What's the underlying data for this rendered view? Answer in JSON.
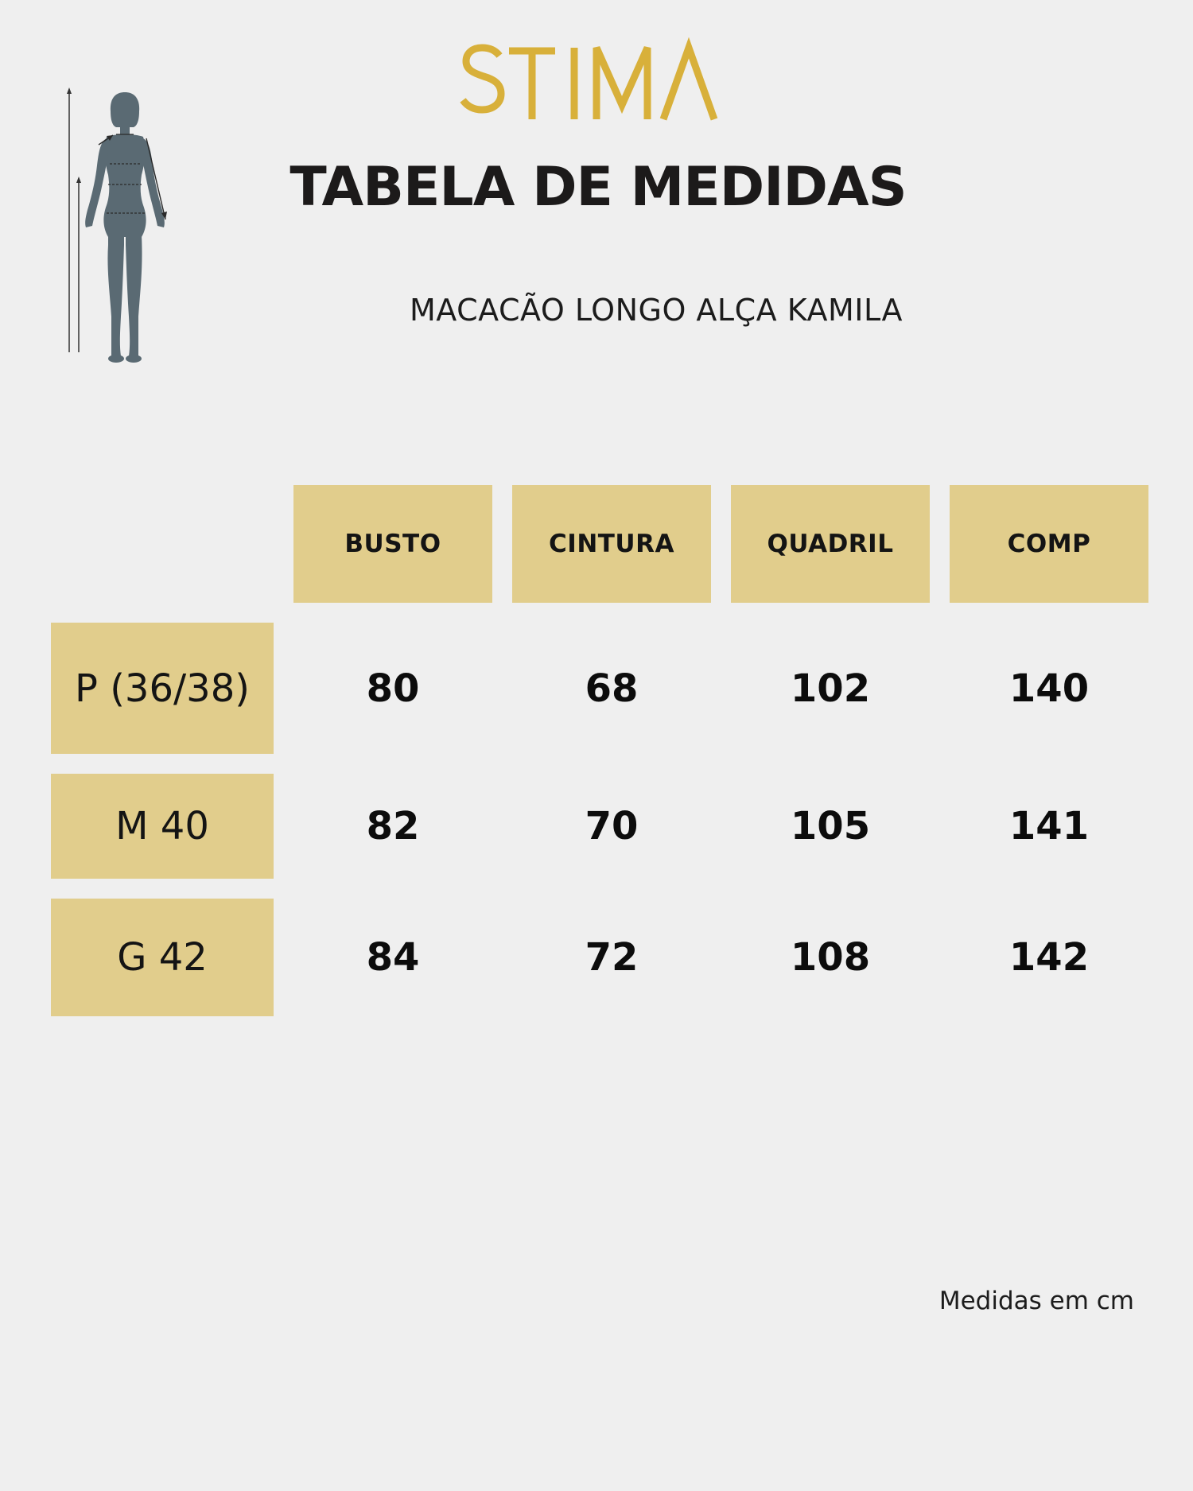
{
  "brand": {
    "name": "STIMA",
    "color": "#d8b03a"
  },
  "header": {
    "title": "TABELA DE MEDIDAS",
    "product": "MACACÃO LONGO ALÇA KAMILA"
  },
  "figure": {
    "icon": "female-body-measure-icon"
  },
  "table": {
    "columns": [
      "BUSTO",
      "CINTURA",
      "QUADRIL",
      "COMP"
    ],
    "rows": [
      {
        "size": "P (36/38)",
        "values": [
          "80",
          "68",
          "102",
          "140"
        ]
      },
      {
        "size": "M 40",
        "values": [
          "82",
          "70",
          "105",
          "141"
        ]
      },
      {
        "size": "G 42",
        "values": [
          "84",
          "72",
          "108",
          "142"
        ]
      }
    ],
    "accent": "#e1cd8c"
  },
  "footer": {
    "note": "Medidas em cm"
  }
}
